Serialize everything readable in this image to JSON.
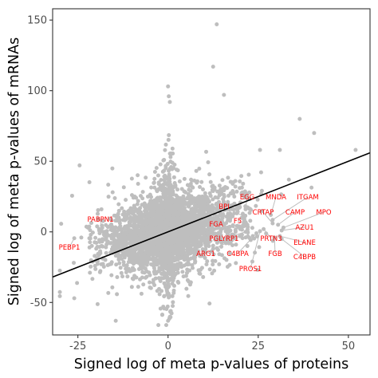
{
  "chart_data": {
    "type": "scatter",
    "title": "",
    "xlabel": "Signed log of meta p-values of proteins",
    "ylabel": "Signed log of meta p-values of mRNAs",
    "xlim": [
      -32,
      56
    ],
    "ylim": [
      -73,
      158
    ],
    "x_ticks": [
      -25,
      0,
      25,
      50
    ],
    "y_ticks": [
      -50,
      0,
      50,
      100,
      150
    ],
    "x_tick_labels": [
      "-25",
      "0",
      "25",
      "50"
    ],
    "y_tick_labels": [
      "-50",
      "0",
      "50",
      "100",
      "150"
    ],
    "grid": false,
    "legend": "none",
    "point_color": "#bebebe",
    "label_color": "#ff0000",
    "fit_line_color": "#000000",
    "fit_line": [
      [
        -32,
        -32
      ],
      [
        56,
        56
      ]
    ],
    "highlighted_points": [
      {
        "label": "EGG",
        "x": 21.5,
        "y": 16.0
      },
      {
        "label": "MNDA",
        "x": 28.5,
        "y": 12.0
      },
      {
        "label": "ITGAM",
        "x": 29.0,
        "y": 8.5
      },
      {
        "label": "BPI",
        "x": 21.0,
        "y": 11.0
      },
      {
        "label": "CRTAP",
        "x": 29.0,
        "y": 6.0
      },
      {
        "label": "CAMP",
        "x": 30.5,
        "y": 5.0
      },
      {
        "label": "MPO",
        "x": 32.0,
        "y": 3.0
      },
      {
        "label": "F5",
        "x": 22.0,
        "y": 5.0
      },
      {
        "label": "FGA",
        "x": 20.0,
        "y": 2.0
      },
      {
        "label": "AZU1",
        "x": 31.5,
        "y": 1.0
      },
      {
        "label": "PGLYRP1",
        "x": 21.5,
        "y": 0.0
      },
      {
        "label": "PRTN3",
        "x": 26.5,
        "y": 2.0
      },
      {
        "label": "ELANE",
        "x": 31.0,
        "y": -3.0
      },
      {
        "label": "ARG1",
        "x": 20.5,
        "y": -2.0
      },
      {
        "label": "C4BPA",
        "x": 24.5,
        "y": -1.0
      },
      {
        "label": "FGB",
        "x": 29.5,
        "y": -4.0
      },
      {
        "label": "C4BPB",
        "x": 31.5,
        "y": -5.0
      },
      {
        "label": "PROS1",
        "x": 25.5,
        "y": 0.5
      },
      {
        "label": "PABPN1",
        "x": -18.5,
        "y": 1.0
      },
      {
        "label": "PEBP1",
        "x": -26.0,
        "y": -4.5
      }
    ],
    "notable_gray_points": [
      {
        "x": 13.5,
        "y": 147
      },
      {
        "x": 12.5,
        "y": 117
      },
      {
        "x": 0.0,
        "y": 103
      },
      {
        "x": 0.2,
        "y": 96
      },
      {
        "x": 0.5,
        "y": 92
      },
      {
        "x": 15.5,
        "y": 97
      },
      {
        "x": 36.5,
        "y": 80
      },
      {
        "x": 40.5,
        "y": 70
      },
      {
        "x": 52.0,
        "y": 58
      },
      {
        "x": 31.0,
        "y": 58
      },
      {
        "x": 33.5,
        "y": 37
      },
      {
        "x": 25.5,
        "y": 58
      },
      {
        "x": -26.0,
        "y": -47
      },
      {
        "x": -14.5,
        "y": -63
      },
      {
        "x": 0.0,
        "y": -63
      },
      {
        "x": 22.0,
        "y": -10
      },
      {
        "x": 23.5,
        "y": -3
      }
    ]
  },
  "label_positions": {
    "EGG": [
      310,
      250
    ],
    "MNDA": [
      346,
      250
    ],
    "ITGAM": [
      386,
      250
    ],
    "BPI": [
      281,
      262
    ],
    "CRTAP": [
      330,
      269
    ],
    "CAMP": [
      370,
      269
    ],
    "MPO": [
      406,
      269
    ],
    "F5": [
      298,
      280
    ],
    "FGA": [
      271,
      284
    ],
    "AZU1": [
      382,
      288
    ],
    "PGLYRP1": [
      281,
      302
    ],
    "PRTN3": [
      340,
      302
    ],
    "ELANE": [
      382,
      307
    ],
    "ARG1": [
      258,
      321
    ],
    "C4BPA": [
      298,
      321
    ],
    "FGB": [
      345,
      321
    ],
    "C4BPB": [
      382,
      325
    ],
    "PROS1": [
      314,
      340
    ],
    "PABPN1": [
      126,
      278
    ],
    "PEBP1": [
      87,
      313
    ]
  }
}
